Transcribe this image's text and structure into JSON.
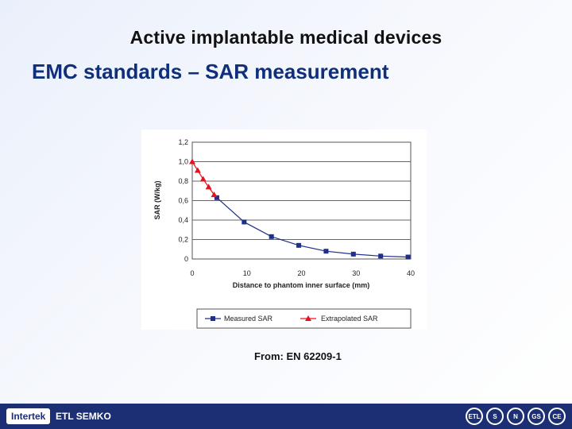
{
  "slide": {
    "title": "Active implantable medical devices",
    "subtitle": "EMC standards – SAR measurement",
    "source": "From: EN 62209-1"
  },
  "footer": {
    "logo_text": "Intertek",
    "logo_sub": "ETL SEMKO",
    "marks": [
      "ETL",
      "S",
      "N",
      "GS",
      "CE"
    ]
  },
  "chart_data": {
    "type": "line",
    "xlabel": "Distance to phantom inner surface (mm)",
    "ylabel": "SAR (W/kg)",
    "xlim": [
      0,
      40
    ],
    "ylim": [
      0,
      1.2
    ],
    "x_ticks": [
      "0",
      "10",
      "20",
      "30",
      "40"
    ],
    "y_ticks": [
      "0",
      "0,2",
      "0,4",
      "0,6",
      "0,8",
      "1,0",
      "1,2"
    ],
    "grid": "horizontal",
    "legend_position": "bottom",
    "series": [
      {
        "name": "Measured SAR",
        "color": "#1f2f8a",
        "marker": "square",
        "x": [
          4.5,
          9.5,
          14.5,
          19.5,
          24.5,
          29.5,
          34.5,
          39.5
        ],
        "y": [
          0.63,
          0.38,
          0.23,
          0.14,
          0.08,
          0.05,
          0.03,
          0.02
        ]
      },
      {
        "name": "Extrapolated SAR",
        "color": "#e8101e",
        "marker": "triangle",
        "x": [
          0,
          1,
          2,
          3,
          4
        ],
        "y": [
          1.0,
          0.91,
          0.82,
          0.74,
          0.66
        ]
      }
    ]
  }
}
